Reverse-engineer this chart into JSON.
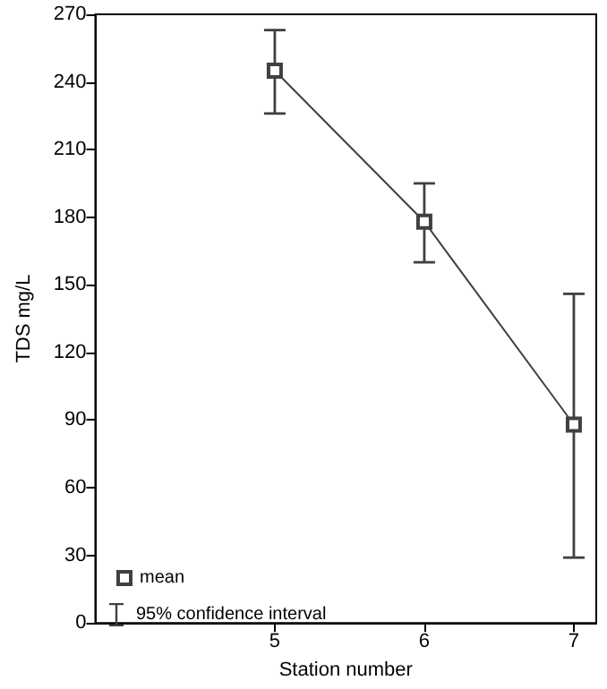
{
  "chart_data": {
    "type": "line",
    "xlabel": "Station number",
    "ylabel": "TDS mg/L",
    "x": [
      5,
      6,
      7
    ],
    "series": [
      {
        "name": "mean",
        "color": "#404040",
        "values": [
          245,
          178,
          88
        ],
        "errors": [
          [
            226,
            263
          ],
          [
            160,
            195
          ],
          [
            29,
            146
          ]
        ]
      }
    ],
    "xlim": [
      3.8,
      7.15
    ],
    "xticks": [
      5,
      6,
      7
    ],
    "ylim": [
      0,
      270
    ],
    "yticks": [
      0,
      30,
      60,
      90,
      120,
      150,
      180,
      210,
      240,
      270
    ],
    "grid": false,
    "legend": "bottom left",
    "marker": "square",
    "line_style": "solid",
    "annotations": [
      "95% confidence interval"
    ]
  }
}
